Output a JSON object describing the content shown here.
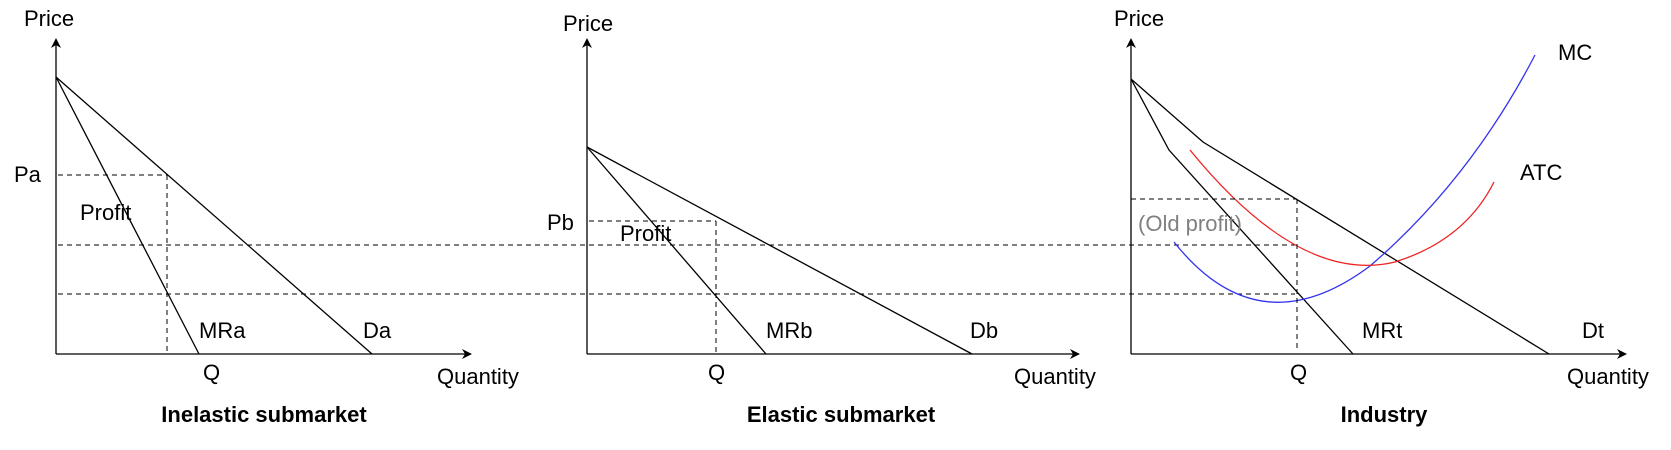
{
  "labels": {
    "price": "Price",
    "quantity": "Quantity",
    "q": "Q",
    "profit": "Profit",
    "old_profit": "(Old profit)"
  },
  "panels": {
    "inelastic": {
      "title": "Inelastic submarket",
      "price_label": "Pa",
      "mr_label": "MRa",
      "demand_label": "Da"
    },
    "elastic": {
      "title": "Elastic submarket",
      "price_label": "Pb",
      "mr_label": "MRb",
      "demand_label": "Db"
    },
    "industry": {
      "title": "Industry",
      "mr_label": "MRt",
      "demand_label": "Dt",
      "mc_label": "MC",
      "atc_label": "ATC"
    }
  },
  "colors": {
    "mc": "#3333ee",
    "atc": "#ee2222",
    "axis": "#000000",
    "old_profit_text": "#808080"
  }
}
